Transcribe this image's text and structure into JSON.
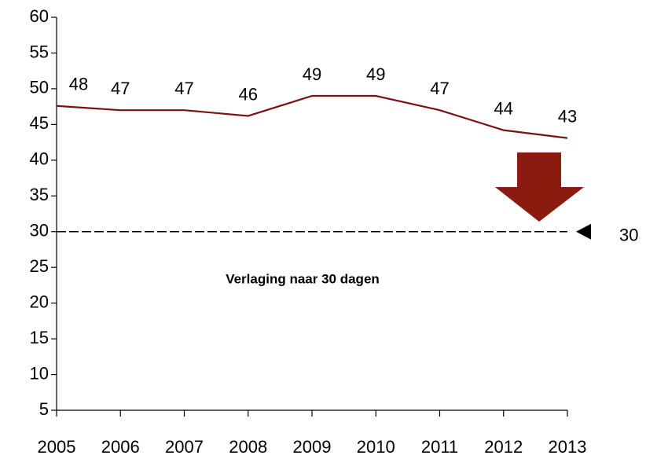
{
  "chart_data": {
    "type": "line",
    "categories": [
      "2005",
      "2006",
      "2007",
      "2008",
      "2009",
      "2010",
      "2011",
      "2012",
      "2013"
    ],
    "values": [
      47.6,
      47,
      47,
      46.2,
      49,
      49,
      47,
      44.2,
      43.1
    ],
    "value_labels": [
      "48",
      "47",
      "47",
      "46",
      "49",
      "49",
      "47",
      "44",
      "43"
    ],
    "color": "#7b1113",
    "ylim": [
      5,
      60
    ],
    "yticks": [
      5,
      10,
      15,
      20,
      25,
      30,
      35,
      40,
      45,
      50,
      55,
      60
    ],
    "reference_line": 30,
    "annotation": "Verlaging naar 30 dagen"
  }
}
